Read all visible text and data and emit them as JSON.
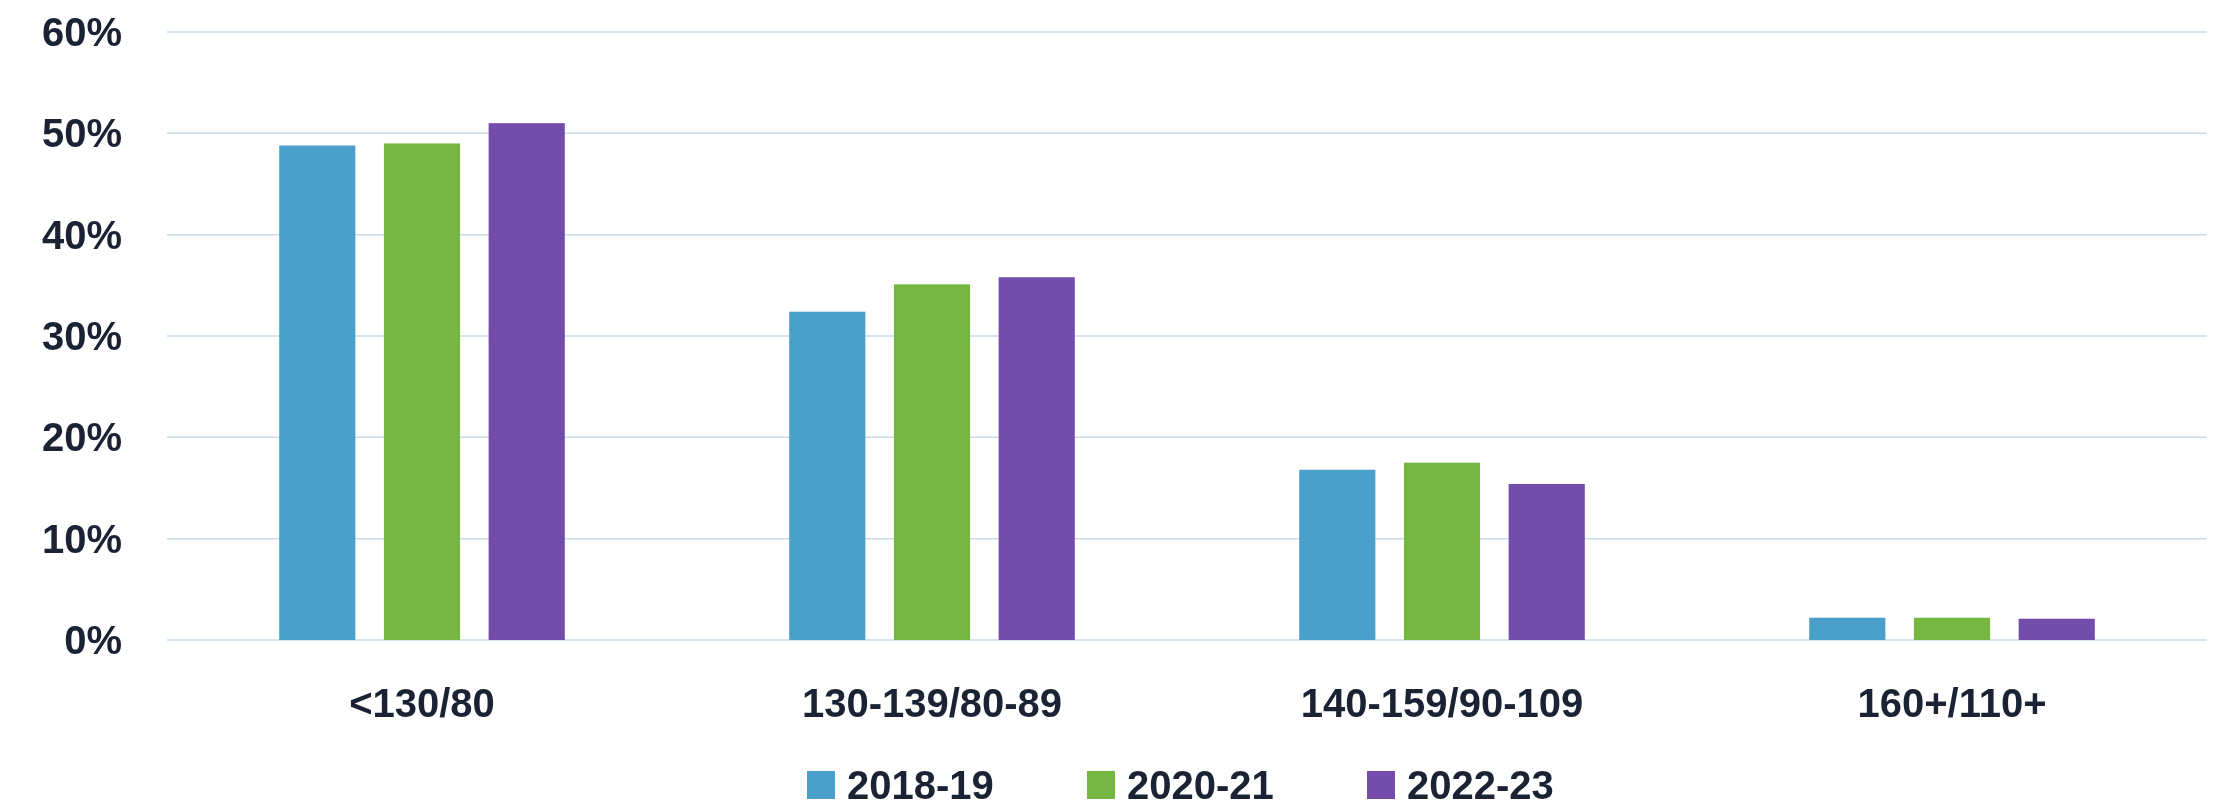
{
  "chart_data": {
    "type": "bar",
    "categories": [
      "<130/80",
      "130-139/80-89",
      "140-159/90-109",
      "160+/110+"
    ],
    "series": [
      {
        "name": "2018-19",
        "color": "#4ba0cb",
        "values": [
          48.8,
          32.4,
          16.8,
          2.2
        ]
      },
      {
        "name": "2020-21",
        "color": "#76b642",
        "values": [
          49.0,
          35.1,
          17.5,
          2.2
        ]
      },
      {
        "name": "2022-23",
        "color": "#744dac",
        "values": [
          51.0,
          35.8,
          15.4,
          2.1
        ]
      }
    ],
    "ylim": [
      0,
      60
    ],
    "yticks": [
      {
        "value": 0,
        "label": "0%"
      },
      {
        "value": 10,
        "label": "10%"
      },
      {
        "value": 20,
        "label": "20%"
      },
      {
        "value": 30,
        "label": "30%"
      },
      {
        "value": 40,
        "label": "40%"
      },
      {
        "value": 50,
        "label": "50%"
      },
      {
        "value": 60,
        "label": "60%"
      }
    ],
    "grid": "y",
    "legend": "bottom"
  }
}
